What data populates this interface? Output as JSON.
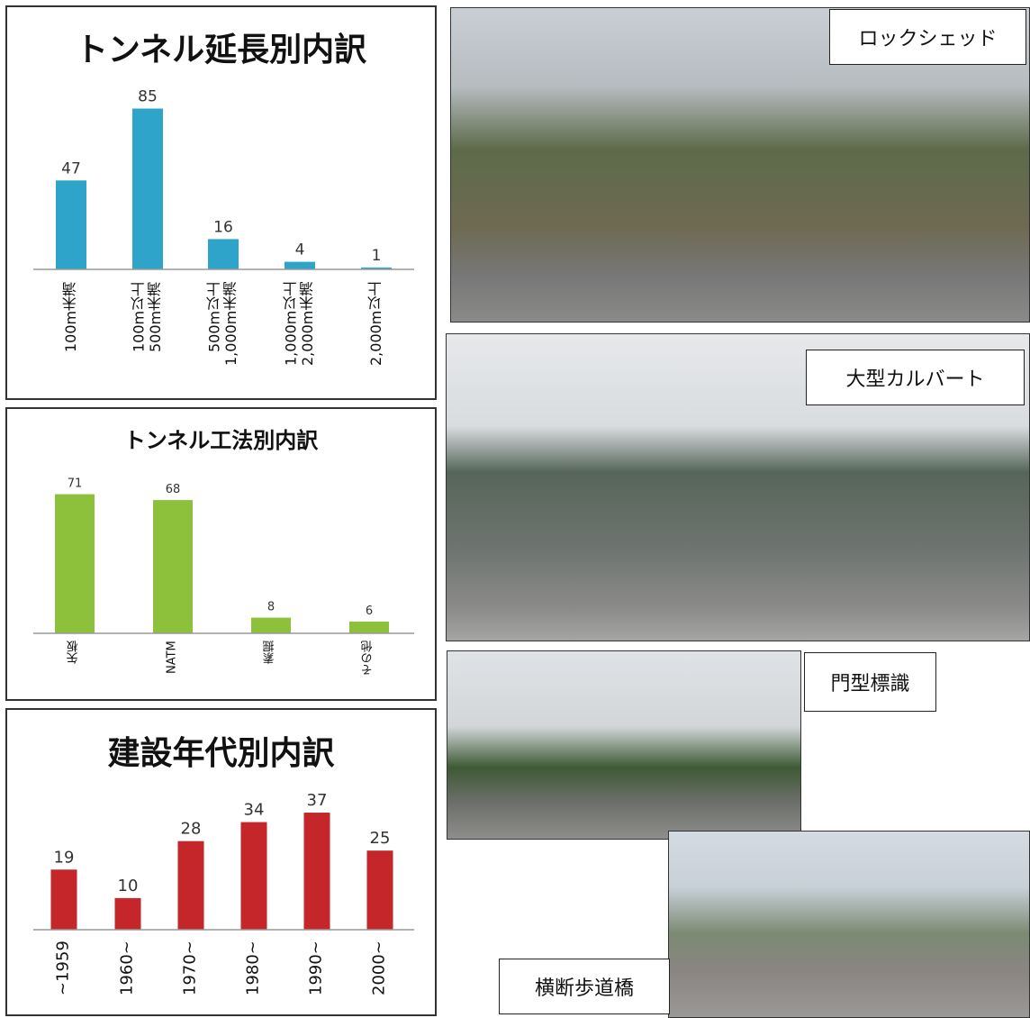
{
  "chart_data": [
    {
      "type": "bar",
      "title": "トンネル延長別内訳",
      "categories": [
        "100m未満",
        "100m以上\n500m未満",
        "500m以上\n1,000m未満",
        "1,000m以上\n2,000m未満",
        "2,000m以上"
      ],
      "values": [
        47,
        85,
        16,
        4,
        1
      ],
      "color": "#2fa4cb",
      "ylim": [
        0,
        100
      ]
    },
    {
      "type": "bar",
      "title": "トンネル工法別内訳",
      "categories": [
        "矢板",
        "NATM",
        "素掘",
        "その他"
      ],
      "values": [
        71,
        68,
        8,
        6
      ],
      "color": "#8dc13c",
      "ylim": [
        0,
        80
      ]
    },
    {
      "type": "bar",
      "title": "建設年代別内訳",
      "categories": [
        "~1959",
        "1960~",
        "1970~",
        "1980~",
        "1990~",
        "2000~"
      ],
      "values": [
        19,
        10,
        28,
        34,
        37,
        25
      ],
      "color": "#c4262a",
      "ylim": [
        0,
        40
      ]
    }
  ],
  "photos": [
    {
      "label": "ロックシェッド"
    },
    {
      "label": "大型カルバート"
    },
    {
      "label": "門型標識"
    },
    {
      "label": "横断歩道橋"
    }
  ]
}
